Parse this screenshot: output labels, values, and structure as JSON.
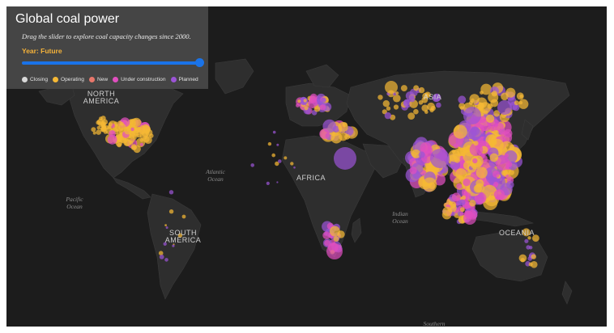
{
  "title": "Global coal power",
  "subtitle": "Drag the slider to explore coal capacity changes since 2000.",
  "year_label": "Year: Future",
  "slider": {
    "position_fraction": 1.0
  },
  "legend": [
    {
      "label": "Closing",
      "color": "#d9d9d9"
    },
    {
      "label": "Operating",
      "color": "#f5b835"
    },
    {
      "label": "New",
      "color": "#e8776b"
    },
    {
      "label": "Under construction",
      "color": "#e04fbf"
    },
    {
      "label": "Planned",
      "color": "#9b54d6"
    }
  ],
  "map_labels": {
    "north_america": "NORTH\nAMERICA",
    "south_america": "SOUTH\nAMERICA",
    "africa": "AFRICA",
    "asia": "ASIA",
    "oceania": "OCEANIA",
    "atlantic": "Atlantic\nOcean",
    "pacific": "Pacific\nOcean",
    "indian": "Indian\nOcean",
    "southern": "Southern"
  }
}
